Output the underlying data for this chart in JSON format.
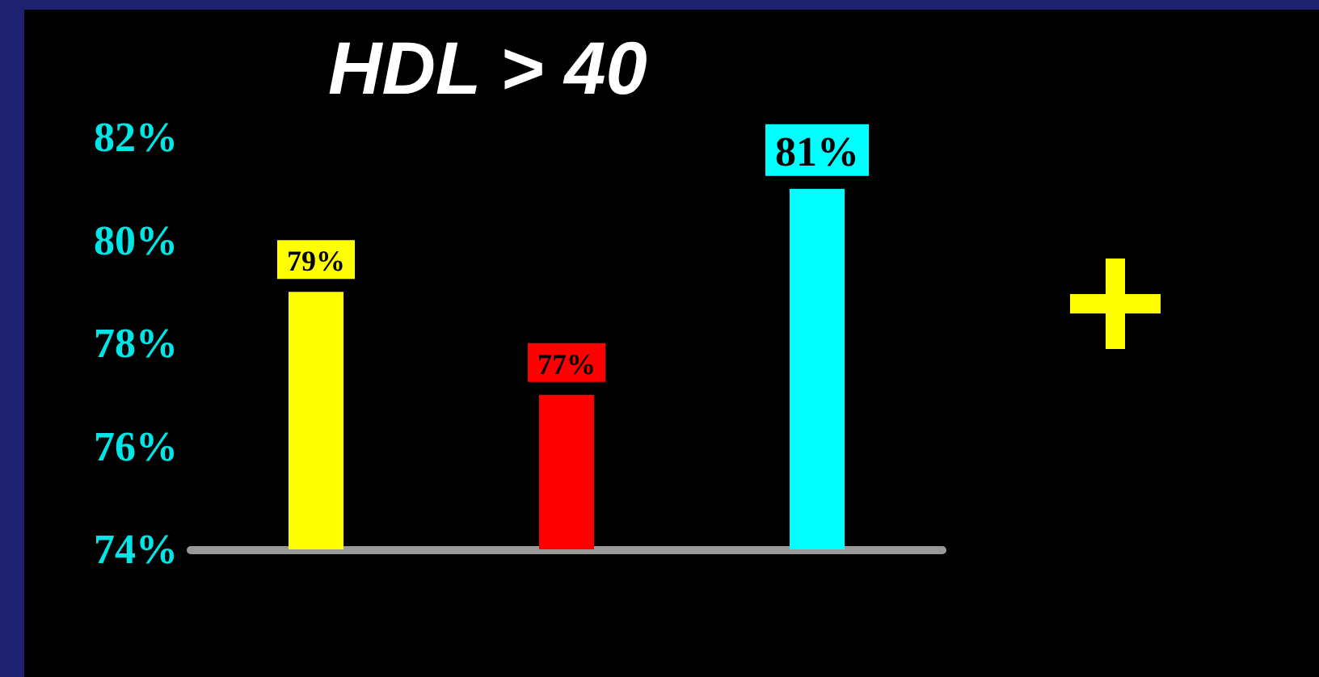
{
  "chart_data": {
    "type": "bar",
    "title": "HDL > 40",
    "categories": [
      null,
      null,
      null
    ],
    "values": [
      79,
      77,
      81
    ],
    "colors": [
      "#ffff00",
      "#ff0000",
      "#00ffff"
    ],
    "value_labels": [
      "79%",
      "77%",
      "81%"
    ],
    "ylim": [
      74,
      82
    ],
    "yticks": [
      {
        "value": 74,
        "label": "74%"
      },
      {
        "value": 76,
        "label": "76%"
      },
      {
        "value": 78,
        "label": "78%"
      },
      {
        "value": 80,
        "label": "80%"
      },
      {
        "value": 82,
        "label": "82%"
      }
    ],
    "tick_labels": "y"
  }
}
